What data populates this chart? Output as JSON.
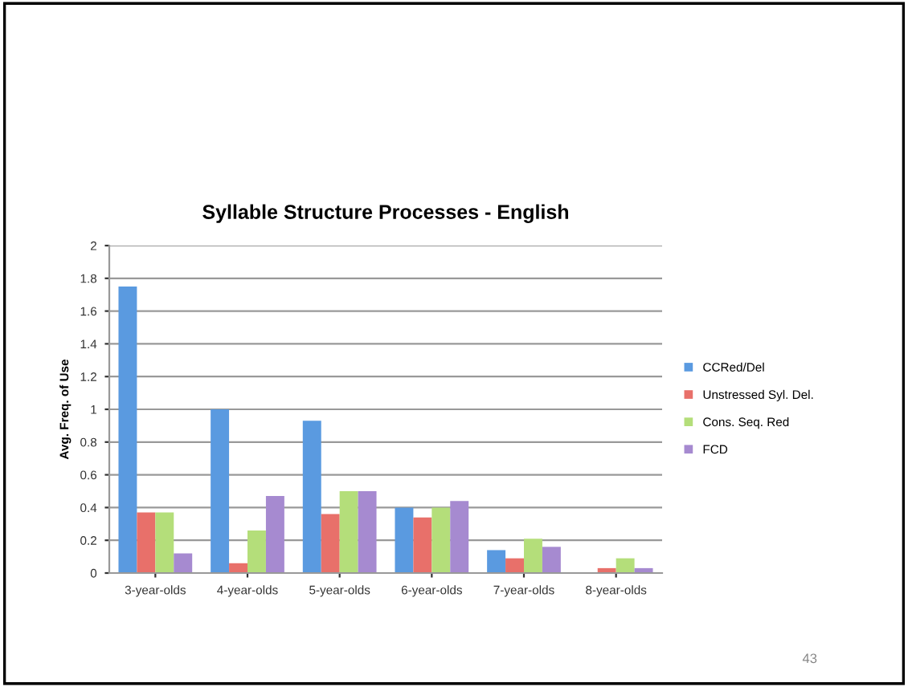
{
  "chart_data": {
    "type": "bar",
    "title": "Syllable Structure Processes - English",
    "ylabel": "Avg. Freq. of Use",
    "categories": [
      "3-year-olds",
      "4-year-olds",
      "5-year-olds",
      "6-year-olds",
      "7-year-olds",
      "8-year-olds"
    ],
    "series": [
      {
        "name": "CCRed/Del",
        "color": "#5a9ae0",
        "values": [
          1.75,
          1.0,
          0.93,
          0.4,
          0.14,
          0
        ]
      },
      {
        "name": "Unstressed Syl. Del.",
        "color": "#e8706a",
        "values": [
          0.37,
          0.06,
          0.36,
          0.34,
          0.09,
          0.03
        ]
      },
      {
        "name": "Cons. Seq. Red",
        "color": "#b4de7a",
        "values": [
          0.37,
          0.26,
          0.5,
          0.4,
          0.21,
          0.09
        ]
      },
      {
        "name": "FCD",
        "color": "#a68ad0",
        "values": [
          0.12,
          0.47,
          0.5,
          0.44,
          0.16,
          0.03
        ]
      }
    ],
    "ylim": [
      0,
      2
    ],
    "yticks": [
      0,
      0.2,
      0.4,
      0.6,
      0.8,
      1,
      1.2,
      1.4,
      1.6,
      1.8,
      2
    ],
    "grid": "y",
    "legend": "right",
    "annotations": [
      "43"
    ]
  }
}
